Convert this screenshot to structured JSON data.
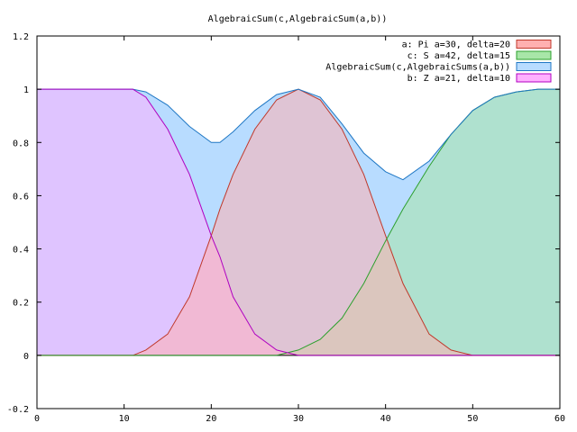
{
  "chart_data": {
    "type": "area",
    "title": "AlgebraicSum(c,AlgebraicSum(a,b))",
    "xlabel": "",
    "ylabel": "",
    "xlim": [
      0,
      60
    ],
    "ylim": [
      -0.2,
      1.2
    ],
    "grid": false,
    "legend_position": "top-right",
    "x_ticks": [
      0,
      10,
      20,
      30,
      40,
      50,
      60
    ],
    "x_tick_labels": [
      "0",
      "10",
      "20",
      "30",
      "40",
      "50",
      "60"
    ],
    "y_ticks": [
      -0.2,
      0,
      0.2,
      0.4,
      0.6,
      0.8,
      1,
      1.2
    ],
    "y_tick_labels": [
      "-0.2",
      "0",
      "0.2",
      "0.4",
      "0.6",
      "0.8",
      "1",
      "1.2"
    ],
    "x": [
      0,
      2.5,
      5,
      7.5,
      10,
      11,
      12.5,
      15,
      17.5,
      20,
      21,
      22.5,
      25,
      27.5,
      30,
      32.5,
      35,
      37.5,
      40,
      42,
      45,
      47.5,
      50,
      52.5,
      55,
      57.5,
      60
    ],
    "series": [
      {
        "name": "a: Pi a=30, delta=20",
        "color": "#c0392b",
        "fill": "#ffb0b0",
        "values": [
          0,
          0,
          0,
          0,
          0,
          0,
          0.02,
          0.08,
          0.22,
          0.45,
          0.55,
          0.68,
          0.85,
          0.96,
          1.0,
          0.96,
          0.85,
          0.68,
          0.45,
          0.27,
          0.08,
          0.02,
          0,
          0,
          0,
          0,
          0
        ]
      },
      {
        "name": "c: S  a=42, delta=15",
        "color": "#2ca02c",
        "fill": "#a8e6a8",
        "values": [
          0,
          0,
          0,
          0,
          0,
          0,
          0,
          0,
          0,
          0,
          0,
          0,
          0,
          0,
          0.02,
          0.06,
          0.14,
          0.27,
          0.43,
          0.55,
          0.71,
          0.83,
          0.92,
          0.97,
          0.99,
          1.0,
          1.0
        ]
      },
      {
        "name": "AlgebraicSum(c,AlgebraicSums(a,b))",
        "color": "#1f77c4",
        "fill": "#b8dcff",
        "values": [
          1.0,
          1.0,
          1.0,
          1.0,
          1.0,
          1.0,
          0.99,
          0.94,
          0.86,
          0.8,
          0.8,
          0.84,
          0.92,
          0.98,
          1.0,
          0.97,
          0.87,
          0.76,
          0.69,
          0.66,
          0.73,
          0.83,
          0.92,
          0.97,
          0.99,
          1.0,
          1.0
        ]
      },
      {
        "name": "b: Z  a=21, delta=10",
        "color": "#b000c0",
        "fill": "#ffb0ff",
        "values": [
          1.0,
          1.0,
          1.0,
          1.0,
          1.0,
          1.0,
          0.97,
          0.85,
          0.68,
          0.45,
          0.37,
          0.22,
          0.08,
          0.02,
          0,
          0,
          0,
          0,
          0,
          0,
          0,
          0,
          0,
          0,
          0,
          0,
          0
        ]
      }
    ],
    "fill_layers": [
      {
        "name": "AlgebraicSum(c,AlgebraicSums(a,b))",
        "opacity": 1.0
      },
      {
        "name": "c: S  a=42, delta=15",
        "opacity": 0.55
      },
      {
        "name": "b: Z  a=21, delta=10",
        "opacity": 0.55
      },
      {
        "name": "a: Pi a=30, delta=20",
        "opacity": 0.55
      }
    ],
    "zero_line": true
  }
}
